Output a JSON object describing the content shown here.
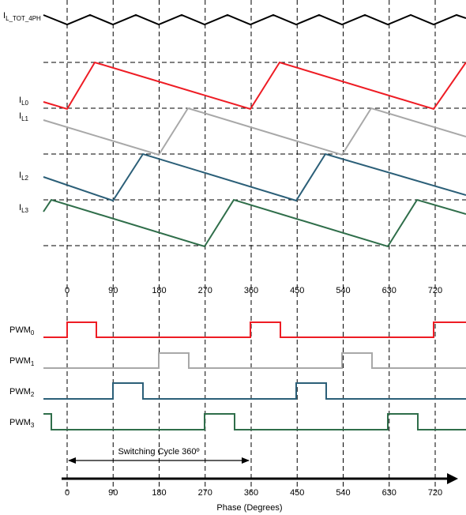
{
  "diagram": {
    "phases": [
      "0",
      "90",
      "180",
      "270",
      "360",
      "450",
      "540",
      "630",
      "720"
    ],
    "total_current": {
      "base": "I",
      "sub": "L_TOT_4PH"
    },
    "currents": [
      {
        "base": "I",
        "sub": "L0",
        "color": "#ee1c24"
      },
      {
        "base": "I",
        "sub": "L1",
        "color": "#a8a8a8"
      },
      {
        "base": "I",
        "sub": "L2",
        "color": "#2b5f78"
      },
      {
        "base": "I",
        "sub": "L3",
        "color": "#2f6e4a"
      }
    ],
    "pwm": [
      {
        "base": "PWM",
        "sub": "0",
        "color": "#ee1c24"
      },
      {
        "base": "PWM",
        "sub": "1",
        "color": "#a8a8a8"
      },
      {
        "base": "PWM",
        "sub": "2",
        "color": "#2b5f78"
      },
      {
        "base": "PWM",
        "sub": "3",
        "color": "#2f6e4a"
      }
    ],
    "cycle_label": "Switching Cycle 360º",
    "axis_label": "Phase (Degrees)"
  }
}
